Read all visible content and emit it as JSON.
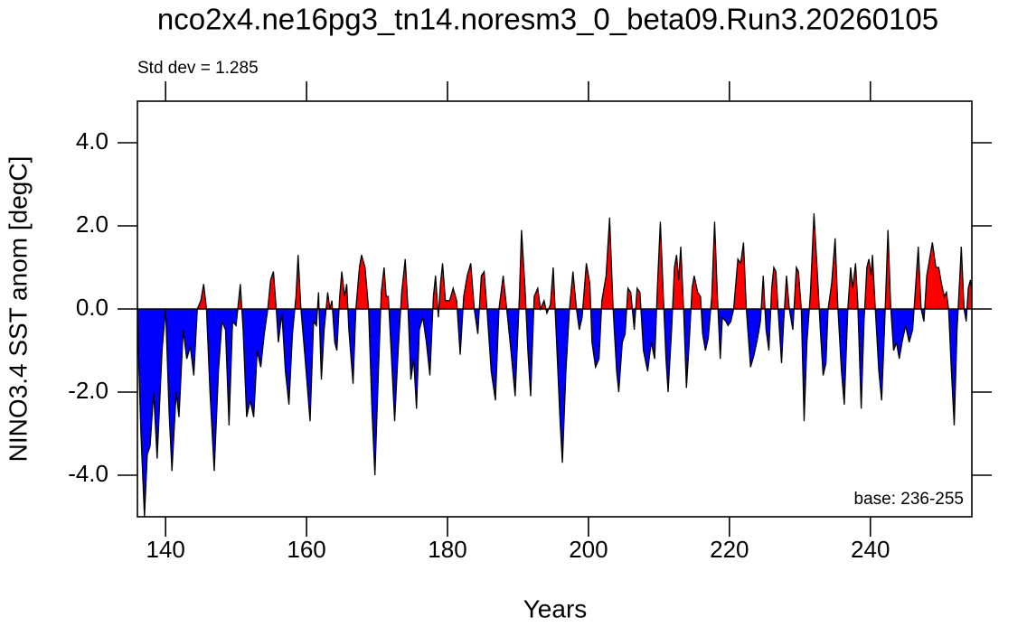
{
  "chart_data": {
    "type": "area",
    "title": "nco2x4.ne16pg3_tn14.noresm3_0_beta09.Run3.20260105",
    "xlabel": "Years",
    "ylabel": "NINO3.4 SST anom [degC]",
    "annotations": [
      "Std dev = 1.285",
      "base: 236-255"
    ],
    "positive_color": "#ff0000",
    "negative_color": "#0000ff",
    "line_color": "#000000",
    "xlim": [
      136,
      254.4
    ],
    "ylim": [
      -5,
      5
    ],
    "xticks": [
      140,
      160,
      180,
      200,
      220,
      240
    ],
    "yticks": [
      {
        "value": -4,
        "label": "-4.0"
      },
      {
        "value": -2,
        "label": "-2.0"
      },
      {
        "value": 0,
        "label": "0.0"
      },
      {
        "value": 2,
        "label": "2.0"
      },
      {
        "value": 4,
        "label": "4.0"
      }
    ],
    "x": [
      136.0,
      136.5,
      137.0,
      137.4,
      137.8,
      138.3,
      138.8,
      139.5,
      140.0,
      140.5,
      140.9,
      141.5,
      141.9,
      142.5,
      143.0,
      143.5,
      144.0,
      144.5,
      145.0,
      145.4,
      145.8,
      146.3,
      146.9,
      147.5,
      148.0,
      148.5,
      149.0,
      149.5,
      150.0,
      150.6,
      151.0,
      151.5,
      152.0,
      152.5,
      153.0,
      153.5,
      154.0,
      154.5,
      154.9,
      155.3,
      155.7,
      156.0,
      156.5,
      157.0,
      157.5,
      158.0,
      158.5,
      158.8,
      159.2,
      159.8,
      160.5,
      161.0,
      161.4,
      161.7,
      162.1,
      162.5,
      163.0,
      163.3,
      163.6,
      164.0,
      164.3,
      164.7,
      165.0,
      165.4,
      165.7,
      166.0,
      166.6,
      167.0,
      167.5,
      167.8,
      168.3,
      168.8,
      169.3,
      169.7,
      170.2,
      170.6,
      171.0,
      171.3,
      171.6,
      172.0,
      172.5,
      173.0,
      173.5,
      174.0,
      174.4,
      174.8,
      175.2,
      175.6,
      176.0,
      176.5,
      177.0,
      177.5,
      178.0,
      178.3,
      178.7,
      179.0,
      179.3,
      179.7,
      180.3,
      180.8,
      181.3,
      181.8,
      182.3,
      182.8,
      183.3,
      183.8,
      184.3,
      184.8,
      185.2,
      185.6,
      186.2,
      186.8,
      187.3,
      187.9,
      188.4,
      189.0,
      189.6,
      190.2,
      190.5,
      191.0,
      191.4,
      191.8,
      192.3,
      192.8,
      193.2,
      193.7,
      194.1,
      194.6,
      195.0,
      195.4,
      196.0,
      196.3,
      196.8,
      197.3,
      197.8,
      198.3,
      198.7,
      199.1,
      199.7,
      200.2,
      200.5,
      201.0,
      201.5,
      201.9,
      202.5,
      203.0,
      203.5,
      204.0,
      204.3,
      204.8,
      205.2,
      205.6,
      206.0,
      206.5,
      206.9,
      207.3,
      207.8,
      208.4,
      208.9,
      209.4,
      209.8,
      210.2,
      210.7,
      211.0,
      211.3,
      211.8,
      212.2,
      212.5,
      212.8,
      213.1,
      213.5,
      213.9,
      214.3,
      214.7,
      215.0,
      215.5,
      215.9,
      216.2,
      216.6,
      217.0,
      217.5,
      217.9,
      218.3,
      218.7,
      219.0,
      219.5,
      219.8,
      220.2,
      220.6,
      221.2,
      221.6,
      222.0,
      222.4,
      223.0,
      223.5,
      224.0,
      224.4,
      224.8,
      225.2,
      225.6,
      226.0,
      226.3,
      226.6,
      226.9,
      227.4,
      227.7,
      228.1,
      228.5,
      229.0,
      229.5,
      229.8,
      230.2,
      230.6,
      231.0,
      231.5,
      232.0,
      232.5,
      232.9,
      233.3,
      233.7,
      234.0,
      234.5,
      235.0,
      235.4,
      235.9,
      236.3,
      236.8,
      237.2,
      237.5,
      237.9,
      238.2,
      238.7,
      239.1,
      239.5,
      239.8,
      240.1,
      240.3,
      240.7,
      241.2,
      241.6,
      242.0,
      242.5,
      242.9,
      243.3,
      243.7,
      244.1,
      244.5,
      245.0,
      245.5,
      246.0,
      246.4,
      246.8,
      247.2,
      247.6,
      248.0,
      248.4,
      248.8,
      249.3,
      249.7,
      250.1,
      250.5,
      250.8,
      251.1,
      251.5,
      251.9,
      252.3,
      252.7,
      252.9,
      253.3,
      253.6,
      253.9,
      254.2,
      254.4
    ],
    "values": [
      -0.2,
      -3.0,
      -5.0,
      -3.5,
      -3.3,
      -2.0,
      -3.6,
      -1.0,
      0.0,
      -2.5,
      -3.9,
      -2.0,
      -2.6,
      -0.5,
      -1.2,
      -0.9,
      -1.6,
      0.0,
      0.2,
      0.6,
      0.0,
      -2.0,
      -3.9,
      -1.5,
      -0.3,
      -0.5,
      -2.8,
      -0.3,
      -0.4,
      0.6,
      -0.5,
      -2.6,
      -2.2,
      -2.6,
      -1.0,
      -1.4,
      -0.6,
      0.0,
      0.7,
      0.9,
      0.0,
      -0.8,
      -0.1,
      -1.5,
      -2.3,
      -0.6,
      0.3,
      1.3,
      0.0,
      -1.2,
      -2.7,
      -0.3,
      -0.4,
      0.4,
      -1.7,
      -0.5,
      0.4,
      0.0,
      0.2,
      -0.8,
      -1.0,
      0.3,
      0.9,
      0.3,
      0.6,
      -0.5,
      -1.8,
      0.0,
      1.0,
      1.3,
      1.0,
      0.0,
      -2.5,
      -4.0,
      -1.5,
      0.4,
      1.0,
      0.3,
      0.3,
      -1.0,
      -2.7,
      -1.0,
      0.4,
      1.2,
      0.0,
      -1.7,
      -1.2,
      -2.4,
      -0.5,
      -0.2,
      -0.8,
      -1.6,
      0.3,
      0.8,
      -0.2,
      0.6,
      1.1,
      0.2,
      0.2,
      0.5,
      0.2,
      -1.1,
      0.3,
      0.8,
      1.1,
      0.0,
      -0.6,
      0.8,
      0.9,
      0.0,
      -1.5,
      -2.2,
      0.0,
      0.8,
      0.0,
      -1.0,
      -2.1,
      0.3,
      1.9,
      0.5,
      -1.0,
      -2.1,
      0.3,
      0.5,
      0.0,
      0.2,
      -0.1,
      0.1,
      1.0,
      -0.5,
      -2.8,
      -3.7,
      -1.5,
      0.0,
      0.9,
      0.0,
      -0.5,
      -0.2,
      1.1,
      0.6,
      -0.8,
      -1.4,
      -1.2,
      0.2,
      0.8,
      2.2,
      0.0,
      -1.5,
      -2.0,
      -0.8,
      -0.6,
      0.5,
      0.4,
      -0.5,
      0.5,
      0.4,
      -1.0,
      -1.5,
      -0.8,
      -1.2,
      0.6,
      2.1,
      0.0,
      -1.2,
      -2.0,
      -0.5,
      1.0,
      1.3,
      0.7,
      1.5,
      0.0,
      -1.9,
      -0.8,
      0.5,
      0.8,
      0.4,
      0.3,
      -0.6,
      -1.0,
      -0.7,
      0.3,
      2.1,
      0.3,
      -1.2,
      -0.2,
      -0.3,
      -0.4,
      -0.3,
      0.0,
      1.2,
      1.1,
      1.6,
      0.0,
      -1.4,
      -1.1,
      -0.7,
      -0.3,
      0.8,
      -0.5,
      -1.0,
      0.5,
      1.0,
      0.9,
      0.0,
      -1.3,
      -0.3,
      0.8,
      0.0,
      -0.5,
      1.0,
      0.9,
      0.0,
      -2.7,
      -0.8,
      0.4,
      2.3,
      0.8,
      -0.5,
      -1.6,
      -1.3,
      0.0,
      0.6,
      1.7,
      0.0,
      -1.5,
      -2.3,
      0.0,
      1.0,
      0.5,
      1.1,
      0.2,
      -2.4,
      -0.3,
      1.0,
      1.2,
      0.8,
      1.3,
      0.0,
      -1.5,
      -2.2,
      -0.5,
      1.9,
      0.0,
      -1.0,
      -0.8,
      -1.2,
      -0.8,
      -0.4,
      -0.8,
      -0.5,
      0.5,
      1.5,
      0.0,
      -0.3,
      0.8,
      1.2,
      1.6,
      1.0,
      1.0,
      0.6,
      0.3,
      0.4,
      0.0,
      -1.5,
      -2.8,
      -0.5,
      0.8,
      1.5,
      0.0,
      -0.3,
      0.5,
      0.7,
      0.4
    ]
  }
}
